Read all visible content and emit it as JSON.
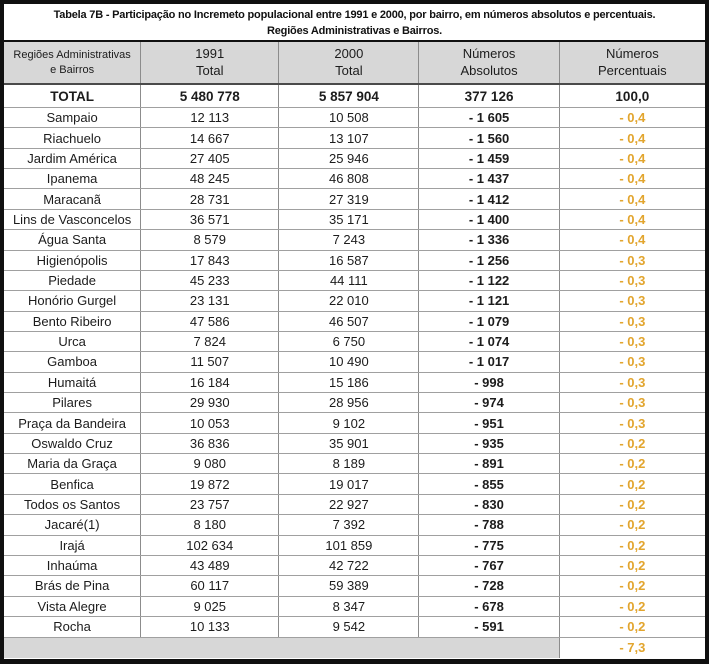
{
  "title": {
    "line1": "Tabela 7B - Participação no Incremeto populacional entre 1991 e 2000, por bairro, em números absolutos e percentuais.",
    "line2": "Regiões Administrativas e Bairros."
  },
  "table": {
    "headers": [
      {
        "line1": "Regiões Administrativas",
        "line2": "e Bairros"
      },
      {
        "line1": "1991",
        "line2": "Total"
      },
      {
        "line1": "2000",
        "line2": "Total"
      },
      {
        "line1": "Números",
        "line2": "Absolutos"
      },
      {
        "line1": "Números",
        "line2": "Percentuais"
      }
    ],
    "total_row": {
      "name": "TOTAL",
      "y1991": "5 480 778",
      "y2000": "5 857 904",
      "abs": "377 126",
      "pct": "100,0"
    },
    "rows": [
      [
        "Sampaio",
        "12 113",
        "10 508",
        "- 1 605",
        "- 0,4"
      ],
      [
        "Riachuelo",
        "14 667",
        "13 107",
        "- 1 560",
        "- 0,4"
      ],
      [
        "Jardim América",
        "27 405",
        "25 946",
        "- 1 459",
        "- 0,4"
      ],
      [
        "Ipanema",
        "48 245",
        "46 808",
        "- 1 437",
        "- 0,4"
      ],
      [
        "Maracanã",
        "28 731",
        "27 319",
        "- 1 412",
        "- 0,4"
      ],
      [
        "Lins de Vasconcelos",
        "36 571",
        "35 171",
        "- 1 400",
        "- 0,4"
      ],
      [
        "Água Santa",
        "8 579",
        "7 243",
        "- 1 336",
        "- 0,4"
      ],
      [
        "Higienópolis",
        "17 843",
        "16 587",
        "- 1 256",
        "- 0,3"
      ],
      [
        "Piedade",
        "45 233",
        "44 111",
        "- 1 122",
        "- 0,3"
      ],
      [
        "Honório Gurgel",
        "23 131",
        "22 010",
        "- 1 121",
        "- 0,3"
      ],
      [
        "Bento Ribeiro",
        "47 586",
        "46 507",
        "- 1 079",
        "- 0,3"
      ],
      [
        "Urca",
        "7 824",
        "6 750",
        "- 1 074",
        "- 0,3"
      ],
      [
        "Gamboa",
        "11 507",
        "10 490",
        "- 1 017",
        "- 0,3"
      ],
      [
        "Humaitá",
        "16 184",
        "15 186",
        "- 998",
        "- 0,3"
      ],
      [
        "Pilares",
        "29 930",
        "28 956",
        "- 974",
        "- 0,3"
      ],
      [
        "Praça da Bandeira",
        "10 053",
        "9 102",
        "- 951",
        "- 0,3"
      ],
      [
        "Oswaldo Cruz",
        "36 836",
        "35 901",
        "- 935",
        "- 0,2"
      ],
      [
        "Maria da Graça",
        "9 080",
        "8 189",
        "- 891",
        "- 0,2"
      ],
      [
        "Benfica",
        "19 872",
        "19 017",
        "- 855",
        "- 0,2"
      ],
      [
        "Todos os Santos",
        "23 757",
        "22 927",
        "- 830",
        "- 0,2"
      ],
      [
        "Jacaré(1)",
        "8 180",
        "7 392",
        "- 788",
        "- 0,2"
      ],
      [
        "Irajá",
        "102 634",
        "101 859",
        "- 775",
        "- 0,2"
      ],
      [
        "Inhaúma",
        "43 489",
        "42 722",
        "- 767",
        "- 0,2"
      ],
      [
        "Brás de Pina",
        "60 117",
        "59 389",
        "- 728",
        "- 0,2"
      ],
      [
        "Vista Alegre",
        "9 025",
        "8 347",
        "- 678",
        "- 0,2"
      ],
      [
        "Rocha",
        "10 133",
        "9 542",
        "- 591",
        "- 0,2"
      ]
    ],
    "footer": {
      "pct": "- 7,3"
    }
  },
  "colors": {
    "percent_text": "#e2a52e",
    "header_bg": "#d7d7d7",
    "grid": "#8c8c8c",
    "border": "#101010"
  }
}
